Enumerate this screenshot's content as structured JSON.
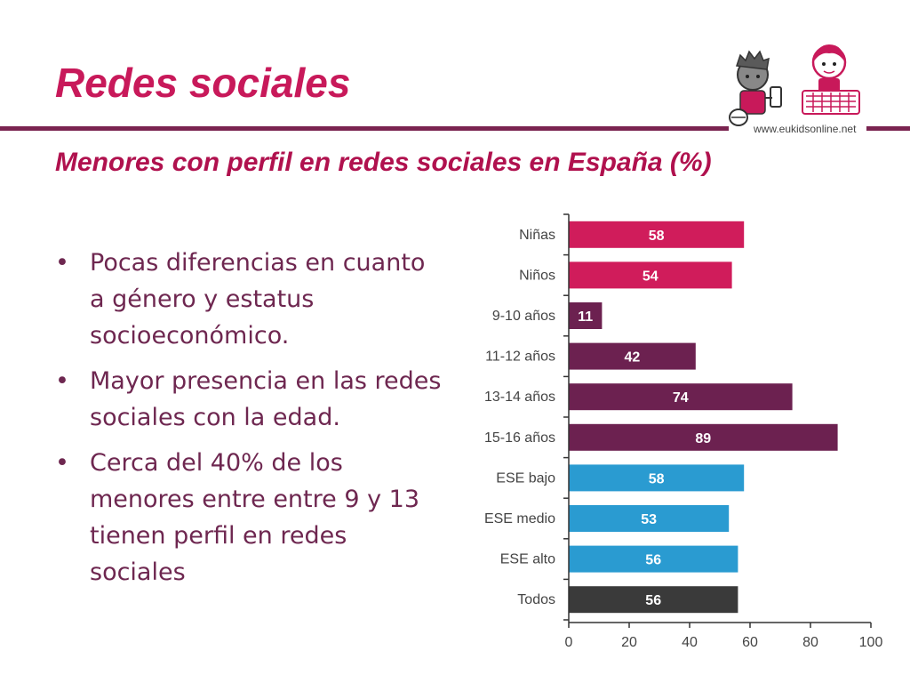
{
  "slide": {
    "title": "Redes sociales",
    "subtitle": "Menores con perfil en redes sociales en España (%)",
    "logo_url": "www.eukidsonline.net",
    "bullets": [
      "Pocas diferencias en cuanto a género y estatus socioeconómico.",
      "Mayor presencia en las redes sociales con la edad.",
      "Cerca del 40% de los menores entre entre 9 y 13 tienen perfil en redes sociales"
    ]
  },
  "colors": {
    "title": "#c8195a",
    "rule": "#7a2450",
    "text": "#6e2750",
    "gender": "#d01c5b",
    "age": "#6c2150",
    "ses": "#2a9bd1",
    "all": "#3a3a3a"
  },
  "chart_data": {
    "type": "bar",
    "orientation": "horizontal",
    "categories": [
      "Niñas",
      "Niños",
      "9-10 años",
      "11-12 años",
      "13-14 años",
      "15-16 años",
      "ESE bajo",
      "ESE medio",
      "ESE alto",
      "Todos"
    ],
    "values": [
      58,
      54,
      11,
      42,
      74,
      89,
      58,
      53,
      56,
      56
    ],
    "bar_colors": [
      "#d01c5b",
      "#d01c5b",
      "#6c2150",
      "#6c2150",
      "#6c2150",
      "#6c2150",
      "#2a9bd1",
      "#2a9bd1",
      "#2a9bd1",
      "#3a3a3a"
    ],
    "xlim": [
      0,
      100
    ],
    "xticks": [
      0,
      20,
      40,
      60,
      80,
      100
    ],
    "data_labels": true,
    "grid": false
  }
}
